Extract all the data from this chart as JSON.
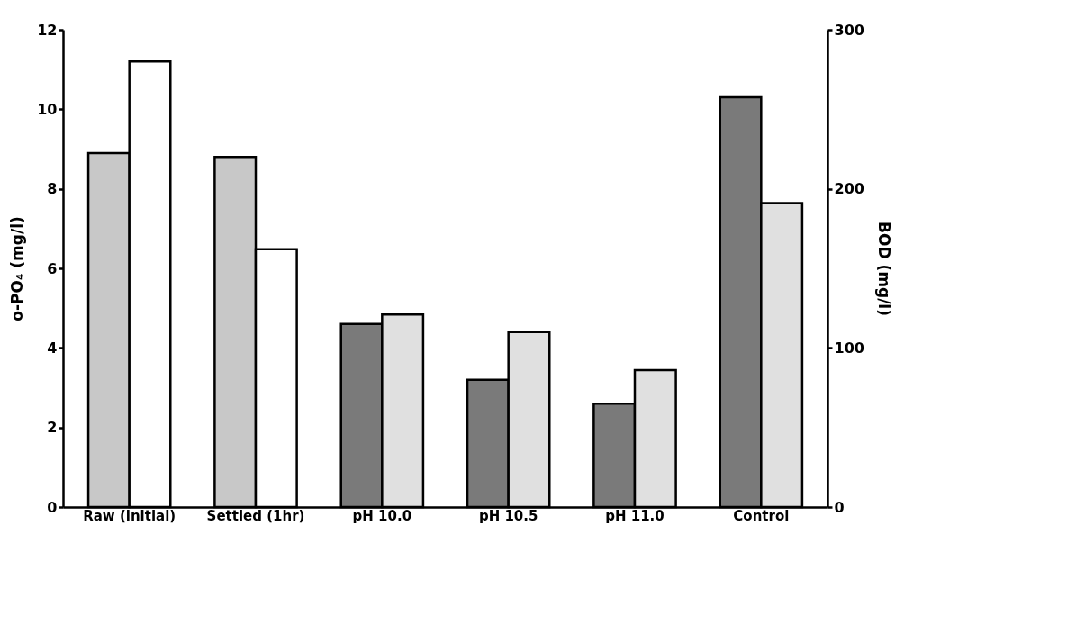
{
  "chart_data": {
    "type": "bar",
    "categories": [
      "Raw (initial)",
      "Settled (1hr)",
      "pH 10.0",
      "pH 10.5",
      "pH 11.0",
      "Control"
    ],
    "ylabel": "o-PO₄ (mg/l)",
    "y2label": "BOD (mg/l)",
    "ylim": [
      0,
      12
    ],
    "yticks": [
      0,
      2,
      4,
      6,
      8,
      10,
      12
    ],
    "y2lim": [
      0,
      300
    ],
    "y2ticks": [
      0,
      100,
      200,
      300
    ],
    "grid": false,
    "series": [
      {
        "colors": [
          "#c8c8c8",
          "#c8c8c8",
          "#7a7a7a",
          "#7a7a7a",
          "#7a7a7a",
          "#7a7a7a"
        ],
        "values": [
          8.9,
          8.8,
          4.6,
          3.2,
          2.6,
          10.3
        ]
      },
      {
        "axis": "y2",
        "colors": [
          "#ffffff",
          "#ffffff",
          "#e0e0e0",
          "#e0e0e0",
          "#e0e0e0",
          "#e0e0e0"
        ],
        "values": [
          280,
          162,
          121,
          110,
          86,
          191
        ]
      }
    ]
  }
}
